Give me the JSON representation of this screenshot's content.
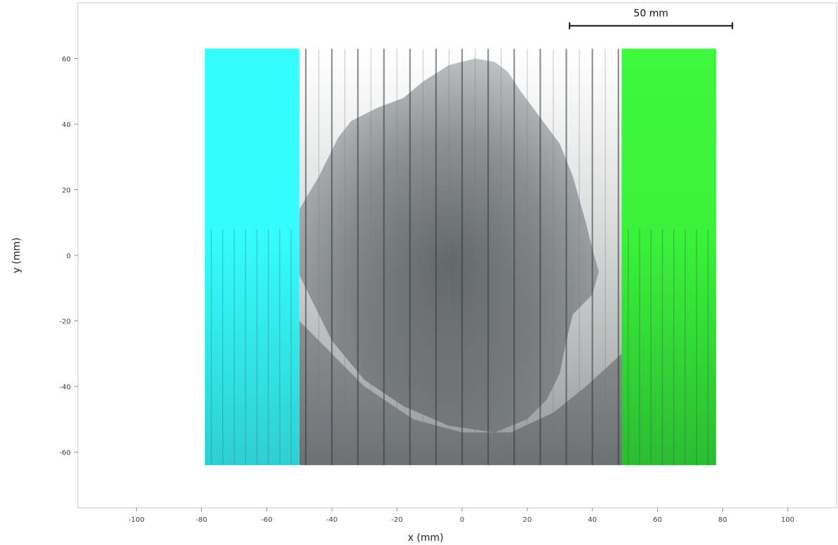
{
  "plot": {
    "x_axis_label": "x (mm)",
    "y_axis_label": "y (mm)",
    "x_range_mm": [
      -118,
      115
    ],
    "y_range_mm": [
      -77,
      77
    ],
    "x_ticks": [
      "-100",
      "-80",
      "-60",
      "-40",
      "-20",
      "0",
      "20",
      "40",
      "60",
      "80",
      "100"
    ],
    "y_ticks": [
      "60",
      "40",
      "20",
      "0",
      "-20",
      "-40",
      "-60"
    ],
    "x_tick_values": [
      -100,
      -80,
      -60,
      -40,
      -20,
      0,
      20,
      40,
      60,
      80,
      100
    ],
    "y_tick_values": [
      60,
      40,
      20,
      0,
      -20,
      -40,
      -60
    ],
    "grid": false,
    "frame_color": "#c8c8c8"
  },
  "scale_bar": {
    "label": "50 mm",
    "x_start_mm": 33,
    "x_end_mm": 83,
    "y_mm": 70
  },
  "layers": {
    "xray_image": {
      "name": "grayscale x-ray scan",
      "x_range_mm": [
        -50,
        49
      ],
      "y_range_mm": [
        -64,
        63
      ]
    },
    "left_overlay": {
      "color": "#35fcfc",
      "x_range_mm": [
        -79,
        -50
      ],
      "y_range_mm": [
        -64,
        63
      ]
    },
    "right_overlay": {
      "color": "#3df83d",
      "x_range_mm": [
        49,
        78
      ],
      "y_range_mm": [
        -64,
        63
      ]
    }
  }
}
